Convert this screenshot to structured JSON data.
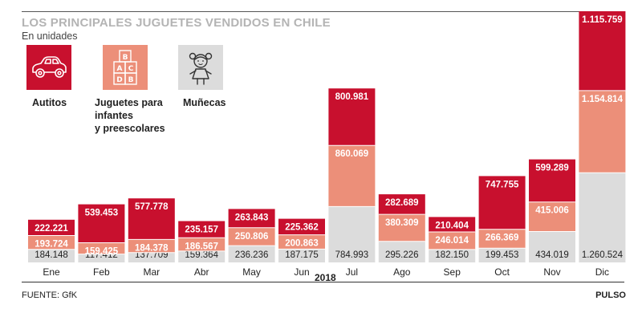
{
  "header": {
    "title": "LOS PRINCIPALES JUGUETES VENDIDOS EN CHILE",
    "subtitle": "En unidades"
  },
  "legend": [
    {
      "label_lines": [
        "Autitos"
      ],
      "icon": "car-icon",
      "color": "#c8102e"
    },
    {
      "label_lines": [
        "Juguetes para",
        "infantes",
        "y preescolares"
      ],
      "icon": "abc-blocks-icon",
      "color": "#ec8f79"
    },
    {
      "label_lines": [
        "Muñecas"
      ],
      "icon": "doll-icon",
      "color": "#dcdcdc"
    }
  ],
  "footer": {
    "source": "FUENTE: GfK",
    "brand": "PULSO",
    "year": "2018"
  },
  "colors": {
    "autitos": "#c8102e",
    "juguetes": "#ec8f79",
    "munecas": "#dcdcdc",
    "label_dark": "#222222",
    "label_light": "#ffffff"
  },
  "chart_data": {
    "type": "bar",
    "stacked": true,
    "categories": [
      "Ene",
      "Feb",
      "Mar",
      "Abr",
      "May",
      "Jun",
      "Jul",
      "Ago",
      "Sep",
      "Oct",
      "Nov",
      "Dic"
    ],
    "series": [
      {
        "name": "Muñecas",
        "values": [
          184148,
          117412,
          137709,
          159364,
          236236,
          187175,
          784993,
          295226,
          182150,
          199453,
          434019,
          1260524
        ],
        "labels": [
          "184.148",
          "117.412",
          "137.709",
          "159.364",
          "236.236",
          "187.175",
          "784.993",
          "295.226",
          "182.150",
          "199.453",
          "434.019",
          "1.260.524"
        ]
      },
      {
        "name": "Juguetes para infantes y preescolares",
        "values": [
          193724,
          159425,
          184378,
          186567,
          250806,
          200863,
          860069,
          380309,
          246014,
          266369,
          415006,
          1154814
        ],
        "labels": [
          "193.724",
          "159.425",
          "184.378",
          "186.567",
          "250.806",
          "200.863",
          "860.069",
          "380.309",
          "246.014",
          "266.369",
          "415.006",
          "1.154.814"
        ]
      },
      {
        "name": "Autitos",
        "values": [
          222221,
          539453,
          577778,
          235157,
          263843,
          225362,
          800981,
          282689,
          210404,
          747755,
          599289,
          1115759
        ],
        "labels": [
          "222.221",
          "539.453",
          "577.778",
          "235.157",
          "263.843",
          "225.362",
          "800.981",
          "282.689",
          "210.404",
          "747.755",
          "599.289",
          "1.115.759"
        ]
      }
    ],
    "title": "LOS PRINCIPALES JUGUETES VENDIDOS EN CHILE",
    "subtitle": "En unidades",
    "xlabel": "2018",
    "ylabel": "",
    "ylim": [
      0,
      3531097
    ],
    "grid": false,
    "legend_position": "top-left"
  }
}
